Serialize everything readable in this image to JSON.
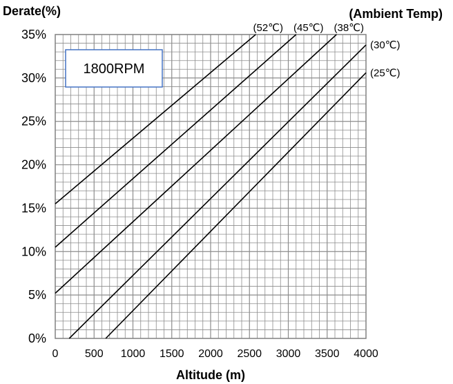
{
  "chart_data": {
    "type": "line",
    "title": "",
    "xlabel": "Altitude (m)",
    "ylabel": "Derate(%)",
    "legend_title": "(Ambient Temp)",
    "annotation": "1800RPM",
    "xlim": [
      0,
      4000
    ],
    "ylim": [
      0,
      35
    ],
    "x_ticks": [
      "0",
      "500",
      "1000",
      "1500",
      "2000",
      "2500",
      "3000",
      "3500",
      "4000"
    ],
    "y_ticks": [
      "0%",
      "5%",
      "10%",
      "15%",
      "20%",
      "25%",
      "30%",
      "35%"
    ],
    "grid": true,
    "series": [
      {
        "name": "(52℃)",
        "points": [
          [
            0,
            15.5
          ],
          [
            2580,
            35
          ]
        ]
      },
      {
        "name": "(45℃)",
        "points": [
          [
            0,
            10.5
          ],
          [
            3100,
            35
          ]
        ]
      },
      {
        "name": "(38℃)",
        "points": [
          [
            0,
            5.2
          ],
          [
            3620,
            35
          ]
        ]
      },
      {
        "name": "(30℃)",
        "points": [
          [
            180,
            0
          ],
          [
            4000,
            33.8
          ]
        ]
      },
      {
        "name": "(25℃)",
        "points": [
          [
            650,
            0
          ],
          [
            4000,
            30.6
          ]
        ]
      }
    ]
  }
}
